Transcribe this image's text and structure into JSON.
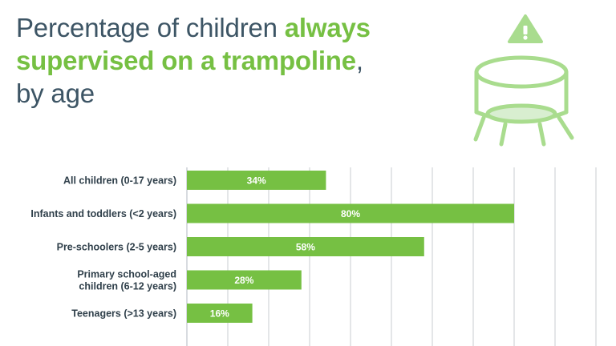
{
  "title": {
    "part1": "Percentage of children ",
    "highlight1": "always",
    "highlight2": "supervised on a trampoline",
    "part2": ",",
    "part3": "by age"
  },
  "colors": {
    "bar": "#76c043",
    "title": "#3d5565",
    "highlight": "#76c043",
    "icon": "#a9dc8e",
    "grid": "#c8ccd2"
  },
  "icons": {
    "illustration": "trampoline-warning-icon"
  },
  "chart_data": {
    "type": "bar",
    "orientation": "horizontal",
    "categories": [
      [
        "All children (0-17 years)"
      ],
      [
        "Infants and toddlers (<2 years)"
      ],
      [
        "Pre-schoolers (2-5 years)"
      ],
      [
        "Primary school-aged",
        "children (6-12 years)"
      ],
      [
        "Teenagers (>13 years)"
      ]
    ],
    "values": [
      34,
      80,
      58,
      28,
      16
    ],
    "value_labels": [
      "34%",
      "80%",
      "58%",
      "28%",
      "16%"
    ],
    "xlim": [
      0,
      100
    ],
    "grid": true
  }
}
